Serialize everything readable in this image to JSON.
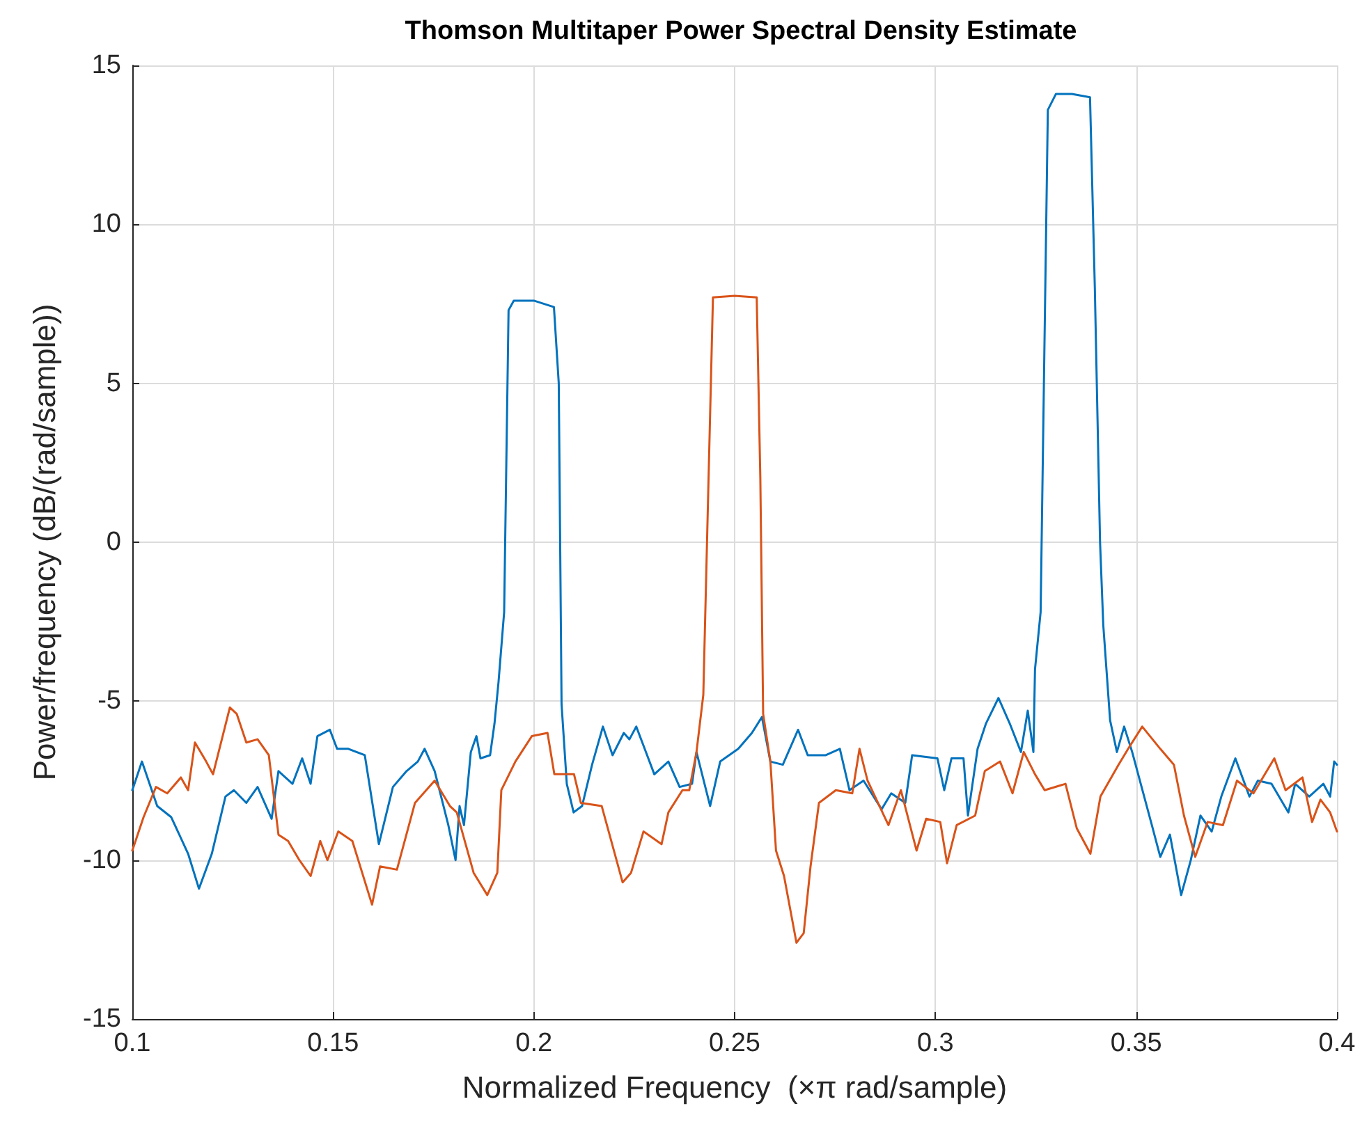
{
  "chart_data": {
    "type": "line",
    "title": "Thomson Multitaper Power Spectral Density Estimate",
    "xlabel": "Normalized Frequency  (×π rad/sample)",
    "ylabel": "Power/frequency (dB/(rad/sample))",
    "xlim": [
      0.1,
      0.4
    ],
    "xticks": [
      0.1,
      0.15,
      0.2,
      0.25,
      0.3,
      0.35,
      0.4
    ],
    "ylim": [
      -15,
      15
    ],
    "yticks": [
      -15,
      -10,
      -5,
      0,
      5,
      10,
      15
    ],
    "grid": true,
    "marker": "none",
    "line_style": "solid",
    "series": [
      {
        "color": "#0072bd",
        "x": [
          0.1,
          0.1024,
          0.1062,
          0.1097,
          0.1139,
          0.1166,
          0.1198,
          0.1232,
          0.1253,
          0.1284,
          0.1312,
          0.1347,
          0.1364,
          0.1399,
          0.1423,
          0.1444,
          0.1461,
          0.1492,
          0.151,
          0.1538,
          0.1579,
          0.1614,
          0.1649,
          0.1683,
          0.1711,
          0.1728,
          0.1753,
          0.1787,
          0.1805,
          0.1815,
          0.1826,
          0.1843,
          0.1857,
          0.1867,
          0.1891,
          0.1902,
          0.1912,
          0.1926,
          0.1937,
          0.195,
          0.2,
          0.205,
          0.2062,
          0.2069,
          0.2082,
          0.2099,
          0.212,
          0.2145,
          0.2172,
          0.2196,
          0.2224,
          0.2238,
          0.2255,
          0.2276,
          0.23,
          0.2335,
          0.2363,
          0.2394,
          0.2405,
          0.2439,
          0.2464,
          0.2509,
          0.2543,
          0.2568,
          0.2589,
          0.262,
          0.2658,
          0.2682,
          0.2727,
          0.2762,
          0.2786,
          0.2821,
          0.2866,
          0.289,
          0.2925,
          0.2942,
          0.3005,
          0.3022,
          0.304,
          0.307,
          0.3081,
          0.3105,
          0.3126,
          0.3157,
          0.3185,
          0.3213,
          0.323,
          0.3244,
          0.3248,
          0.3262,
          0.328,
          0.33,
          0.334,
          0.3385,
          0.3397,
          0.341,
          0.3418,
          0.3435,
          0.3452,
          0.347,
          0.349,
          0.3539,
          0.356,
          0.3584,
          0.3612,
          0.3636,
          0.366,
          0.3688,
          0.3712,
          0.3747,
          0.3782,
          0.3803,
          0.3837,
          0.3879,
          0.3896,
          0.3931,
          0.3966,
          0.3983,
          0.3993,
          0.4
        ],
        "values": [
          -7.8,
          -6.9,
          -8.3,
          -8.65,
          -9.8,
          -10.9,
          -9.8,
          -8.0,
          -7.8,
          -8.2,
          -7.7,
          -8.7,
          -7.2,
          -7.6,
          -6.8,
          -7.6,
          -6.1,
          -5.9,
          -6.5,
          -6.5,
          -6.7,
          -9.5,
          -7.7,
          -7.2,
          -6.9,
          -6.5,
          -7.2,
          -8.9,
          -10.0,
          -8.3,
          -8.9,
          -6.6,
          -6.1,
          -6.8,
          -6.7,
          -5.7,
          -4.4,
          -2.2,
          7.3,
          7.6,
          7.6,
          7.4,
          5,
          -5.1,
          -7.6,
          -8.5,
          -8.3,
          -7.0,
          -5.8,
          -6.7,
          -6.0,
          -6.2,
          -5.8,
          -6.5,
          -7.3,
          -6.9,
          -7.7,
          -7.6,
          -6.6,
          -8.3,
          -6.9,
          -6.5,
          -6.0,
          -5.5,
          -6.9,
          -7.0,
          -5.9,
          -6.7,
          -6.7,
          -6.5,
          -7.8,
          -7.5,
          -8.4,
          -7.9,
          -8.2,
          -6.7,
          -6.8,
          -7.8,
          -6.8,
          -6.8,
          -8.6,
          -6.5,
          -5.7,
          -4.9,
          -5.7,
          -6.6,
          -5.3,
          -6.6,
          -4.0,
          -2.2,
          13.6,
          14.1,
          14.1,
          14.0,
          8,
          0,
          -2.6,
          -5.6,
          -6.6,
          -5.8,
          -6.6,
          -8.9,
          -9.9,
          -9.2,
          -11.1,
          -10.0,
          -8.6,
          -9.1,
          -8.0,
          -6.8,
          -8.0,
          -7.5,
          -7.6,
          -8.5,
          -7.6,
          -8.0,
          -7.6,
          -8.0,
          -6.9,
          -7.0
        ]
      },
      {
        "color": "#d95319",
        "x": [
          0.1,
          0.1028,
          0.1059,
          0.1087,
          0.1121,
          0.1139,
          0.1156,
          0.1184,
          0.1201,
          0.1243,
          0.126,
          0.1284,
          0.1312,
          0.134,
          0.1364,
          0.1388,
          0.1416,
          0.1444,
          0.1468,
          0.1486,
          0.1513,
          0.1548,
          0.1597,
          0.1617,
          0.1659,
          0.1704,
          0.1753,
          0.1791,
          0.1808,
          0.185,
          0.1884,
          0.1909,
          0.1919,
          0.1954,
          0.1995,
          0.2034,
          0.2051,
          0.21,
          0.2117,
          0.2169,
          0.2221,
          0.2242,
          0.2273,
          0.2318,
          0.2335,
          0.237,
          0.2387,
          0.2405,
          0.2422,
          0.2446,
          0.25,
          0.2555,
          0.2564,
          0.2571,
          0.2589,
          0.2603,
          0.2623,
          0.2654,
          0.2672,
          0.2689,
          0.271,
          0.2752,
          0.2793,
          0.2811,
          0.2831,
          0.2883,
          0.2914,
          0.2953,
          0.2977,
          0.3012,
          0.3029,
          0.3053,
          0.3099,
          0.3123,
          0.3161,
          0.3192,
          0.322,
          0.3248,
          0.3272,
          0.3324,
          0.3352,
          0.3386,
          0.3411,
          0.3456,
          0.348,
          0.3515,
          0.356,
          0.3594,
          0.3619,
          0.3647,
          0.3678,
          0.3716,
          0.3751,
          0.3792,
          0.3844,
          0.3872,
          0.3914,
          0.3938,
          0.3959,
          0.3983,
          0.4
        ],
        "values": [
          -9.7,
          -8.65,
          -7.7,
          -7.9,
          -7.4,
          -7.8,
          -6.3,
          -6.9,
          -7.3,
          -5.2,
          -5.4,
          -6.3,
          -6.2,
          -6.7,
          -9.2,
          -9.4,
          -10.0,
          -10.5,
          -9.4,
          -10.0,
          -9.1,
          -9.4,
          -11.4,
          -10.2,
          -10.3,
          -8.2,
          -7.5,
          -8.3,
          -8.5,
          -10.4,
          -11.1,
          -10.4,
          -7.8,
          -6.9,
          -6.1,
          -6.0,
          -7.3,
          -7.3,
          -8.2,
          -8.3,
          -10.7,
          -10.4,
          -9.1,
          -9.5,
          -8.5,
          -7.8,
          -7.8,
          -6.6,
          -4.8,
          7.7,
          7.75,
          7.7,
          2,
          -5.4,
          -6.9,
          -9.7,
          -10.5,
          -12.6,
          -12.3,
          -10.2,
          -8.2,
          -7.8,
          -7.9,
          -6.5,
          -7.5,
          -8.9,
          -7.8,
          -9.7,
          -8.7,
          -8.8,
          -10.1,
          -8.9,
          -8.6,
          -7.2,
          -6.9,
          -7.9,
          -6.6,
          -7.3,
          -7.8,
          -7.6,
          -9.0,
          -9.8,
          -8.0,
          -7.0,
          -6.5,
          -5.8,
          -6.5,
          -7.0,
          -8.6,
          -9.9,
          -8.8,
          -8.9,
          -7.5,
          -7.9,
          -6.8,
          -7.8,
          -7.4,
          -8.8,
          -8.1,
          -8.5,
          -9.1
        ]
      }
    ]
  }
}
